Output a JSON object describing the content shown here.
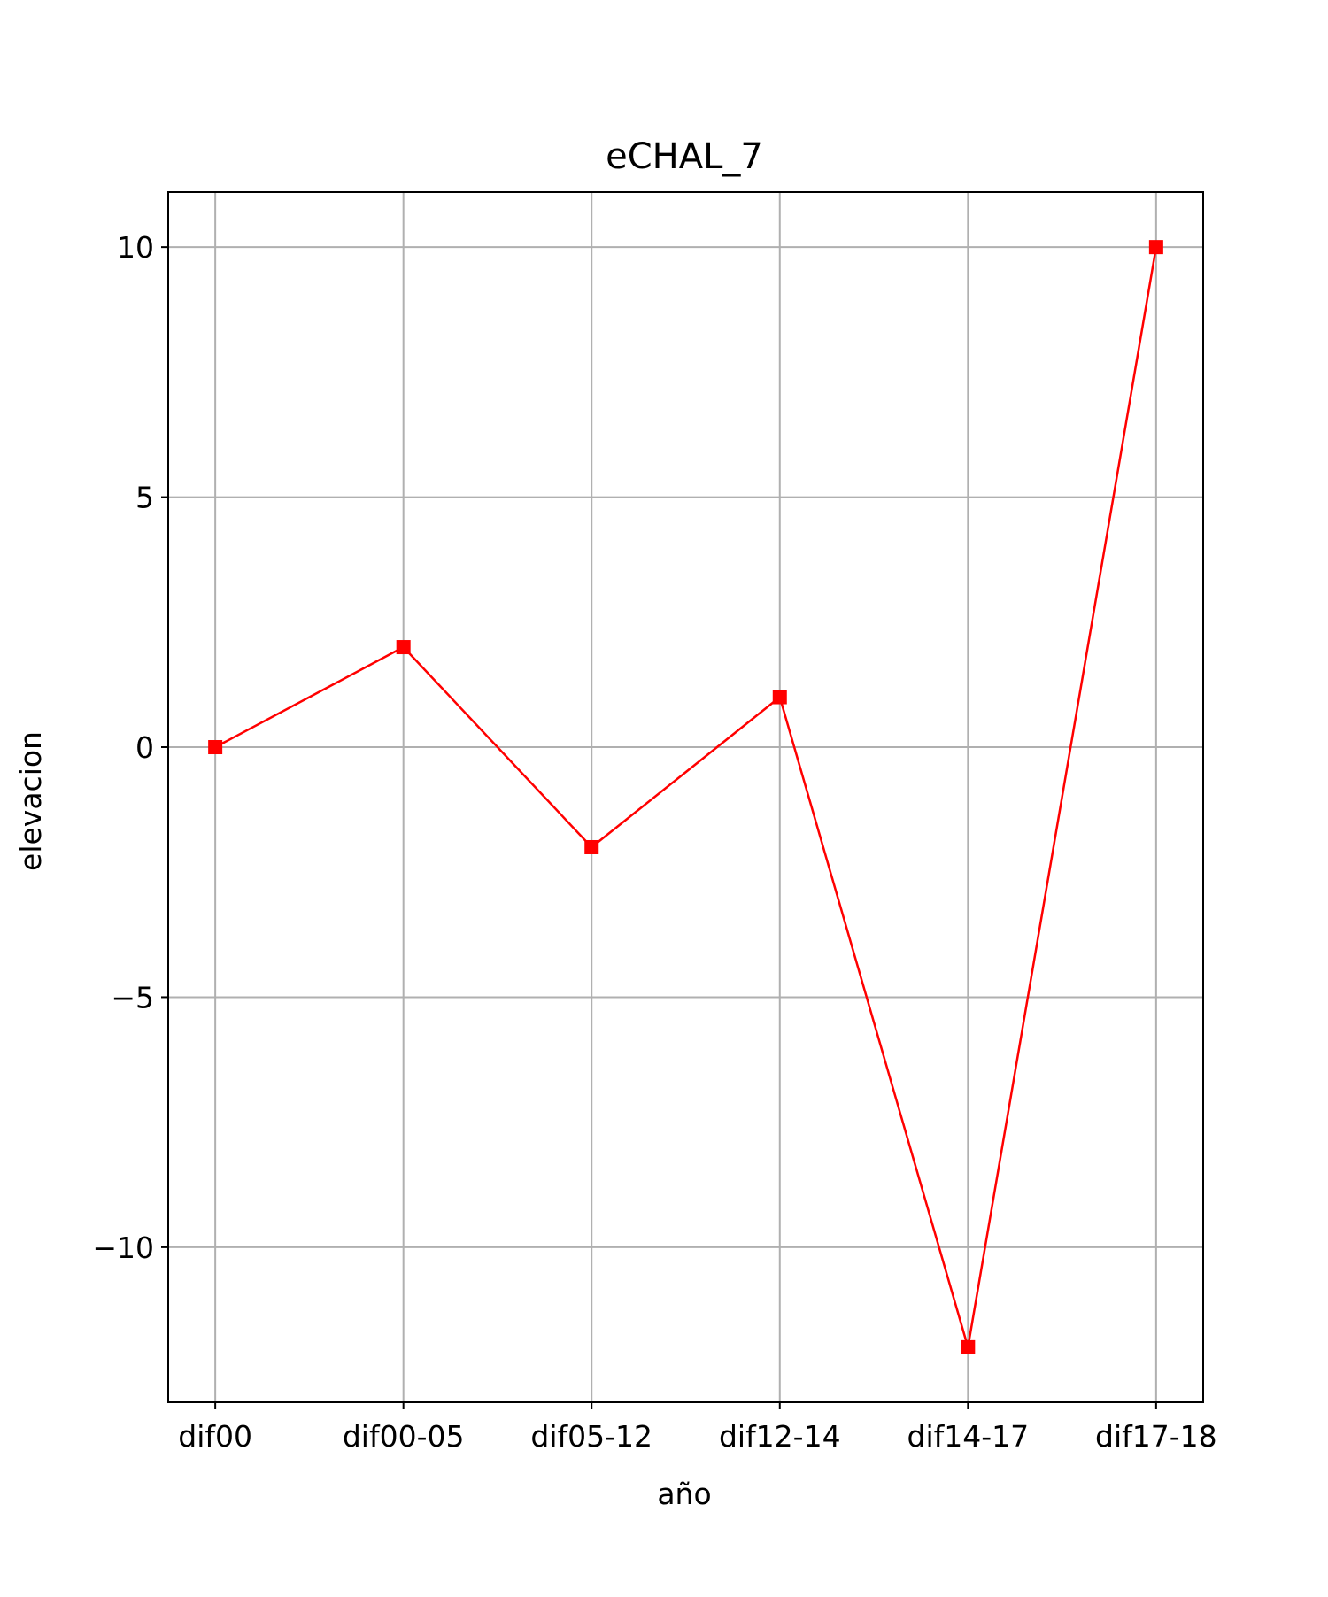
{
  "chart_data": {
    "type": "line",
    "title": "eCHAL_7",
    "xlabel": "año",
    "ylabel": "elevacion",
    "categories": [
      "dif00",
      "dif00-05",
      "dif05-12",
      "dif12-14",
      "dif14-17",
      "dif17-18"
    ],
    "series": [
      {
        "values": [
          0,
          2,
          -2,
          1,
          -12,
          10
        ],
        "color": "#ff0000",
        "marker": "square"
      }
    ],
    "ylim": [
      -13.1,
      11.1
    ],
    "yticks": [
      10,
      5,
      0,
      -5,
      -10
    ],
    "ytick_labels": [
      "10",
      "5",
      "0",
      "−5",
      "−10"
    ],
    "grid": true,
    "legend": "none",
    "grid_color": "#b0b0b0"
  }
}
